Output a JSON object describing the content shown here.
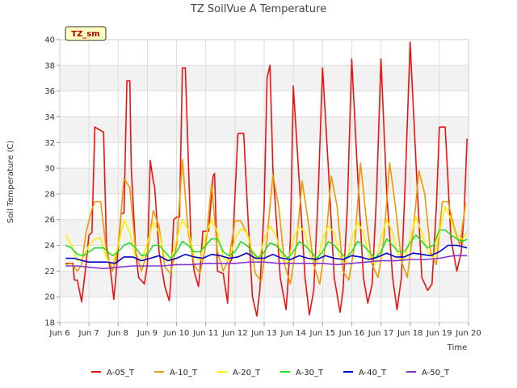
{
  "chart_data": {
    "type": "line",
    "title": "TZ SoilVue A Temperature",
    "xlabel": "Time",
    "ylabel": "Soil Temperature (C)",
    "badge": "TZ_sm",
    "xlim": [
      6,
      20
    ],
    "ylim": [
      18,
      40
    ],
    "x_ticks": [
      {
        "value": 6,
        "label": "Jun 6"
      },
      {
        "value": 7,
        "label": "Jun 7"
      },
      {
        "value": 8,
        "label": "Jun 8"
      },
      {
        "value": 9,
        "label": "Jun 9"
      },
      {
        "value": 10,
        "label": "Jun 10"
      },
      {
        "value": 11,
        "label": "Jun 11"
      },
      {
        "value": 12,
        "label": "Jun 12"
      },
      {
        "value": 13,
        "label": "Jun 13"
      },
      {
        "value": 14,
        "label": "Jun 14"
      },
      {
        "value": 15,
        "label": "Jun 15"
      },
      {
        "value": 16,
        "label": "Jun 16"
      },
      {
        "value": 17,
        "label": "Jun 17"
      },
      {
        "value": 18,
        "label": "Jun 18"
      },
      {
        "value": 19,
        "label": "Jun 19"
      },
      {
        "value": 20,
        "label": "Jun 20"
      }
    ],
    "y_ticks": [
      18,
      20,
      22,
      24,
      26,
      28,
      30,
      32,
      34,
      36,
      38,
      40
    ],
    "grid": true,
    "legend_position": "bottom",
    "series": [
      {
        "name": "A-05_T",
        "color": "#ee1111",
        "x": [
          6.2,
          6.45,
          6.5,
          6.6,
          6.75,
          6.9,
          7.0,
          7.1,
          7.2,
          7.5,
          7.6,
          7.75,
          7.85,
          7.9,
          8.1,
          8.2,
          8.3,
          8.4,
          8.45,
          8.6,
          8.7,
          8.9,
          9.0,
          9.1,
          9.2,
          9.25,
          9.4,
          9.6,
          9.75,
          9.8,
          9.9,
          10.0,
          10.1,
          10.2,
          10.3,
          10.5,
          10.6,
          10.75,
          10.8,
          10.9,
          11.1,
          11.25,
          11.3,
          11.4,
          11.6,
          11.75,
          11.8,
          11.9,
          12.1,
          12.3,
          12.45,
          12.6,
          12.75,
          12.85,
          13.0,
          13.1,
          13.2,
          13.3,
          13.55,
          13.75,
          13.8,
          13.9,
          14.0,
          14.2,
          14.4,
          14.55,
          14.7,
          14.85,
          15.0,
          15.2,
          15.4,
          15.6,
          15.7,
          15.85,
          16.0,
          16.2,
          16.4,
          16.55,
          16.7,
          16.85,
          17.0,
          17.2,
          17.4,
          17.55,
          17.7,
          17.85,
          18.0,
          18.2,
          18.4,
          18.6,
          18.75,
          18.9,
          19.0,
          19.2,
          19.4,
          19.6,
          19.75,
          19.85,
          19.95
        ],
        "y": [
          22.6,
          22.6,
          21.3,
          21.3,
          19.6,
          22.5,
          24.8,
          25.0,
          33.2,
          32.8,
          24.0,
          21.8,
          19.8,
          21.0,
          26.5,
          26.5,
          36.8,
          36.8,
          30.0,
          23.5,
          21.5,
          21.0,
          22.5,
          30.6,
          29.0,
          28.5,
          23.5,
          20.8,
          19.7,
          21.0,
          26.0,
          26.2,
          26.2,
          37.8,
          37.8,
          24.0,
          22.0,
          20.8,
          22.0,
          25.1,
          25.1,
          29.4,
          29.6,
          22.0,
          21.8,
          19.5,
          22.5,
          23.0,
          32.7,
          32.7,
          26.0,
          20.0,
          18.5,
          20.5,
          27.0,
          37.0,
          38.0,
          30.0,
          21.5,
          19.0,
          20.5,
          24.5,
          36.4,
          29.0,
          21.5,
          18.6,
          20.5,
          28.0,
          37.8,
          30.0,
          21.5,
          18.8,
          20.5,
          27.0,
          38.5,
          29.5,
          21.5,
          19.5,
          21.0,
          28.0,
          38.5,
          28.0,
          21.5,
          19.0,
          21.5,
          30.0,
          39.8,
          30.5,
          21.5,
          20.5,
          21.0,
          27.0,
          33.2,
          33.2,
          24.5,
          22.0,
          23.5,
          26.5,
          32.3
        ]
      },
      {
        "name": "A-10_T",
        "color": "#ee9900",
        "x": [
          6.2,
          6.4,
          6.6,
          6.75,
          6.9,
          7.1,
          7.2,
          7.4,
          7.6,
          7.8,
          7.9,
          8.0,
          8.2,
          8.4,
          8.6,
          8.8,
          9.0,
          9.2,
          9.4,
          9.6,
          9.8,
          10.0,
          10.2,
          10.4,
          10.6,
          10.8,
          11.0,
          11.2,
          11.4,
          11.6,
          11.8,
          12.0,
          12.2,
          12.5,
          12.7,
          12.9,
          13.1,
          13.3,
          13.5,
          13.7,
          13.9,
          14.1,
          14.3,
          14.5,
          14.7,
          14.9,
          15.1,
          15.3,
          15.5,
          15.7,
          15.9,
          16.1,
          16.3,
          16.5,
          16.7,
          16.9,
          17.1,
          17.3,
          17.5,
          17.7,
          17.9,
          18.1,
          18.3,
          18.5,
          18.7,
          18.9,
          19.1,
          19.3,
          19.5,
          19.7,
          19.9
        ],
        "y": [
          22.5,
          22.6,
          22.0,
          22.5,
          25.0,
          26.8,
          27.4,
          27.4,
          23.5,
          22.0,
          22.8,
          24.0,
          29.2,
          28.5,
          23.5,
          22.0,
          23.5,
          26.7,
          25.5,
          22.3,
          21.8,
          24.0,
          30.7,
          25.0,
          22.5,
          21.8,
          24.0,
          28.8,
          23.5,
          22.0,
          23.0,
          25.9,
          25.9,
          24.5,
          21.8,
          21.2,
          24.5,
          29.5,
          27.0,
          22.5,
          21.0,
          24.0,
          29.0,
          26.0,
          22.5,
          21.0,
          24.0,
          29.4,
          27.0,
          22.0,
          21.3,
          24.0,
          30.4,
          26.0,
          22.5,
          21.5,
          24.5,
          30.4,
          27.0,
          22.8,
          21.5,
          25.0,
          29.8,
          28.0,
          23.5,
          22.5,
          27.4,
          27.4,
          25.5,
          24.0,
          27.3
        ]
      },
      {
        "name": "A-20_T",
        "color": "#ffee00",
        "x": [
          6.2,
          6.4,
          6.6,
          6.8,
          7.0,
          7.2,
          7.4,
          7.6,
          7.8,
          8.0,
          8.2,
          8.4,
          8.6,
          8.8,
          9.0,
          9.2,
          9.4,
          9.6,
          9.8,
          10.0,
          10.2,
          10.4,
          10.6,
          10.8,
          11.0,
          11.2,
          11.4,
          11.6,
          11.8,
          12.0,
          12.2,
          12.4,
          12.6,
          12.8,
          13.0,
          13.2,
          13.4,
          13.6,
          13.8,
          14.0,
          14.2,
          14.4,
          14.6,
          14.8,
          15.0,
          15.2,
          15.4,
          15.6,
          15.8,
          16.0,
          16.2,
          16.4,
          16.6,
          16.8,
          17.0,
          17.2,
          17.4,
          17.6,
          17.8,
          18.0,
          18.2,
          18.4,
          18.6,
          18.8,
          19.0,
          19.2,
          19.4,
          19.6,
          19.8,
          19.95
        ],
        "y": [
          24.8,
          24.0,
          22.8,
          23.0,
          24.0,
          24.5,
          24.6,
          23.0,
          22.5,
          24.0,
          26.0,
          25.0,
          23.0,
          22.8,
          24.2,
          25.8,
          25.0,
          23.0,
          22.8,
          24.5,
          26.0,
          25.2,
          23.2,
          22.8,
          24.8,
          26.0,
          25.0,
          23.0,
          22.8,
          24.5,
          25.3,
          25.0,
          23.5,
          22.8,
          24.5,
          25.5,
          24.8,
          23.2,
          22.5,
          24.5,
          25.5,
          25.0,
          23.0,
          22.5,
          24.5,
          25.5,
          25.0,
          23.0,
          22.5,
          24.5,
          25.8,
          25.0,
          23.0,
          22.5,
          24.5,
          26.0,
          25.0,
          23.0,
          22.8,
          24.5,
          26.2,
          25.0,
          23.5,
          23.0,
          25.0,
          27.0,
          26.0,
          24.5,
          24.5,
          25.0
        ]
      },
      {
        "name": "A-30_T",
        "color": "#22dd22",
        "x": [
          6.2,
          6.4,
          6.6,
          6.8,
          7.0,
          7.2,
          7.5,
          7.8,
          8.0,
          8.2,
          8.4,
          8.6,
          8.8,
          9.0,
          9.2,
          9.4,
          9.6,
          9.8,
          10.0,
          10.2,
          10.4,
          10.6,
          10.8,
          11.0,
          11.2,
          11.4,
          11.6,
          11.8,
          12.0,
          12.2,
          12.4,
          12.6,
          12.8,
          13.0,
          13.2,
          13.4,
          13.6,
          13.8,
          14.0,
          14.2,
          14.4,
          14.6,
          14.8,
          15.0,
          15.2,
          15.4,
          15.6,
          15.8,
          16.0,
          16.2,
          16.4,
          16.6,
          16.8,
          17.0,
          17.2,
          17.4,
          17.6,
          17.8,
          18.0,
          18.2,
          18.4,
          18.6,
          18.8,
          19.0,
          19.2,
          19.4,
          19.6,
          19.8,
          19.95
        ],
        "y": [
          24.0,
          23.8,
          23.3,
          23.2,
          23.5,
          23.8,
          23.8,
          23.2,
          23.5,
          24.0,
          24.2,
          23.8,
          23.2,
          23.3,
          24.0,
          24.0,
          23.5,
          23.0,
          23.5,
          24.3,
          24.0,
          23.5,
          23.5,
          24.0,
          24.5,
          24.5,
          23.5,
          23.2,
          23.5,
          24.3,
          24.0,
          23.5,
          23.0,
          23.5,
          24.2,
          24.0,
          23.5,
          23.0,
          23.5,
          24.3,
          24.0,
          23.5,
          23.0,
          23.5,
          24.3,
          24.0,
          23.5,
          23.0,
          23.5,
          24.3,
          24.0,
          23.5,
          23.0,
          23.5,
          24.5,
          24.0,
          23.5,
          23.5,
          24.2,
          24.8,
          24.3,
          23.8,
          24.0,
          25.2,
          25.2,
          24.8,
          24.5,
          24.3,
          24.5
        ]
      },
      {
        "name": "A-40_T",
        "color": "#0000cc",
        "x": [
          6.2,
          6.5,
          6.8,
          7.0,
          7.3,
          7.6,
          7.9,
          8.2,
          8.5,
          8.8,
          9.1,
          9.4,
          9.7,
          10.0,
          10.3,
          10.6,
          10.9,
          11.2,
          11.5,
          11.8,
          12.1,
          12.4,
          12.7,
          13.0,
          13.3,
          13.6,
          13.9,
          14.2,
          14.5,
          14.8,
          15.1,
          15.4,
          15.7,
          16.0,
          16.3,
          16.6,
          16.9,
          17.2,
          17.5,
          17.8,
          18.1,
          18.4,
          18.7,
          19.0,
          19.3,
          19.6,
          19.95
        ],
        "y": [
          23.0,
          23.0,
          22.8,
          22.7,
          22.7,
          22.7,
          22.6,
          23.1,
          23.1,
          22.8,
          23.0,
          23.2,
          22.8,
          23.0,
          23.3,
          23.1,
          23.0,
          23.3,
          23.2,
          23.0,
          23.1,
          23.4,
          23.0,
          23.0,
          23.3,
          23.0,
          22.9,
          23.2,
          23.0,
          22.9,
          23.2,
          23.0,
          22.9,
          23.2,
          23.1,
          22.9,
          23.1,
          23.4,
          23.1,
          23.1,
          23.4,
          23.3,
          23.2,
          23.5,
          24.0,
          24.0,
          23.8
        ]
      },
      {
        "name": "A-50_T",
        "color": "#8833cc",
        "x": [
          6.2,
          6.6,
          7.0,
          7.5,
          8.0,
          8.5,
          9.0,
          9.5,
          10.0,
          10.5,
          11.0,
          11.5,
          12.0,
          12.5,
          13.0,
          13.5,
          14.0,
          14.5,
          15.0,
          15.5,
          16.0,
          16.5,
          17.0,
          17.5,
          18.0,
          18.5,
          19.0,
          19.5,
          19.95
        ],
        "y": [
          22.4,
          22.4,
          22.3,
          22.2,
          22.3,
          22.4,
          22.4,
          22.4,
          22.5,
          22.5,
          22.6,
          22.6,
          22.6,
          22.7,
          22.7,
          22.6,
          22.6,
          22.6,
          22.6,
          22.5,
          22.6,
          22.7,
          22.8,
          22.8,
          22.9,
          22.9,
          23.0,
          23.2,
          23.2
        ]
      }
    ]
  }
}
